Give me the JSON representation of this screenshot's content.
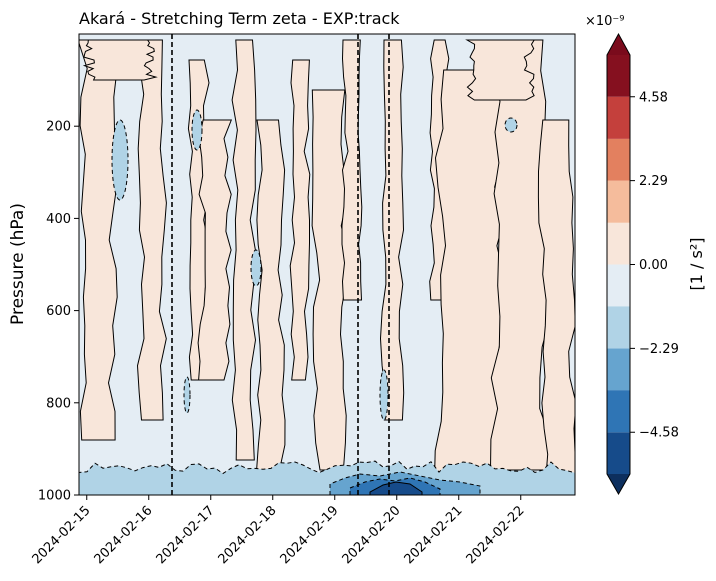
{
  "chart_data": {
    "type": "heatmap",
    "title": "Akará - Stretching Term zeta - EXP:track",
    "xlabel": "",
    "ylabel": "Pressure (hPa)",
    "ylim": [
      1000,
      0
    ],
    "y_ticks": [
      200,
      400,
      600,
      800,
      1000
    ],
    "y_tick_labels": [
      "200",
      "400",
      "600",
      "800",
      "1000"
    ],
    "x_tick_labels": [
      "2024-02-15",
      "2024-02-16",
      "2024-02-17",
      "2024-02-18",
      "2024-02-19",
      "2024-02-20",
      "2024-02-21",
      "2024-02-22"
    ],
    "xlim": [
      "2024-02-14 21:00",
      "2024-02-22 21:00"
    ],
    "vertical_dashed_lines": [
      "2024-02-16 09:00",
      "2024-02-19 09:00",
      "2024-02-19 21:00"
    ],
    "colorbar": {
      "label": "[1 / s²]",
      "multiplier": "×10⁻⁹",
      "tick_values": [
        -4.58,
        -2.29,
        0.0,
        2.29,
        4.58
      ],
      "tick_labels": [
        "−4.58",
        "−2.29",
        "0.00",
        "2.29",
        "4.58"
      ],
      "levels": [
        -5.72,
        -4.58,
        -3.43,
        -2.29,
        -1.14,
        0.0,
        1.14,
        2.29,
        3.43,
        4.58,
        5.72
      ],
      "colors": [
        "#164b8a",
        "#2f75b5",
        "#66a4cf",
        "#b0d3e6",
        "#e4edf4",
        "#f8e6da",
        "#f5bc9c",
        "#e3805f",
        "#c4403c",
        "#85101f"
      ],
      "extend_low_color": "#0d2f5e",
      "extend_high_color": "#7a0b1c"
    },
    "fields": {
      "background": "#e4edf4",
      "positive_region": "#f8e6da",
      "weak_negative_region": "#b0d3e6",
      "moderate_negative_region": "#66a4cf",
      "strong_negative_region": "#2f75b5",
      "strongest_negative_region": "#164b8a"
    }
  }
}
